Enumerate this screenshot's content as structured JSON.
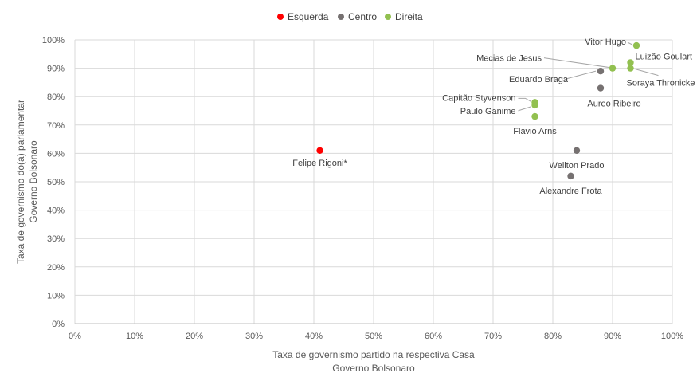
{
  "chart_data": {
    "type": "scatter",
    "xlabel": "Taxa de governismo partido na respectiva Casa",
    "xlabel_sub": "Governo Bolsonaro",
    "ylabel": "Taxa de governismo do(a) parlamentar",
    "ylabel_sub": "Governo Bolsonaro",
    "xlim": [
      0,
      100
    ],
    "ylim": [
      0,
      100
    ],
    "x_ticks": [
      "0%",
      "10%",
      "20%",
      "30%",
      "40%",
      "50%",
      "60%",
      "70%",
      "80%",
      "90%",
      "100%"
    ],
    "y_ticks": [
      "0%",
      "10%",
      "20%",
      "30%",
      "40%",
      "50%",
      "60%",
      "70%",
      "80%",
      "90%",
      "100%"
    ],
    "grid": true,
    "legend_position": "top-center",
    "series": [
      {
        "name": "Esquerda",
        "color": "#ff0000",
        "points": [
          {
            "label": "Felipe Rigoni*",
            "x": 41,
            "y": 61
          }
        ]
      },
      {
        "name": "Centro",
        "color": "#767171",
        "points": [
          {
            "label": "Eduardo Braga",
            "x": 88,
            "y": 89
          },
          {
            "label": "Aureo Ribeiro",
            "x": 88,
            "y": 83
          },
          {
            "label": "Weliton Prado",
            "x": 84,
            "y": 61
          },
          {
            "label": "Alexandre Frota",
            "x": 83,
            "y": 52
          }
        ]
      },
      {
        "name": "Direita",
        "color": "#92c050",
        "points": [
          {
            "label": "Vitor Hugo",
            "x": 94,
            "y": 98
          },
          {
            "label": "Luizão Goulart",
            "x": 93,
            "y": 92
          },
          {
            "label": "Soraya Thronicke",
            "x": 93,
            "y": 90
          },
          {
            "label": "Mecias de Jesus",
            "x": 90,
            "y": 90
          },
          {
            "label": "Capitão Styvenson",
            "x": 77,
            "y": 78
          },
          {
            "label": "Paulo Ganime",
            "x": 77,
            "y": 77
          },
          {
            "label": "Flavio Arns",
            "x": 77,
            "y": 73
          }
        ]
      }
    ]
  }
}
